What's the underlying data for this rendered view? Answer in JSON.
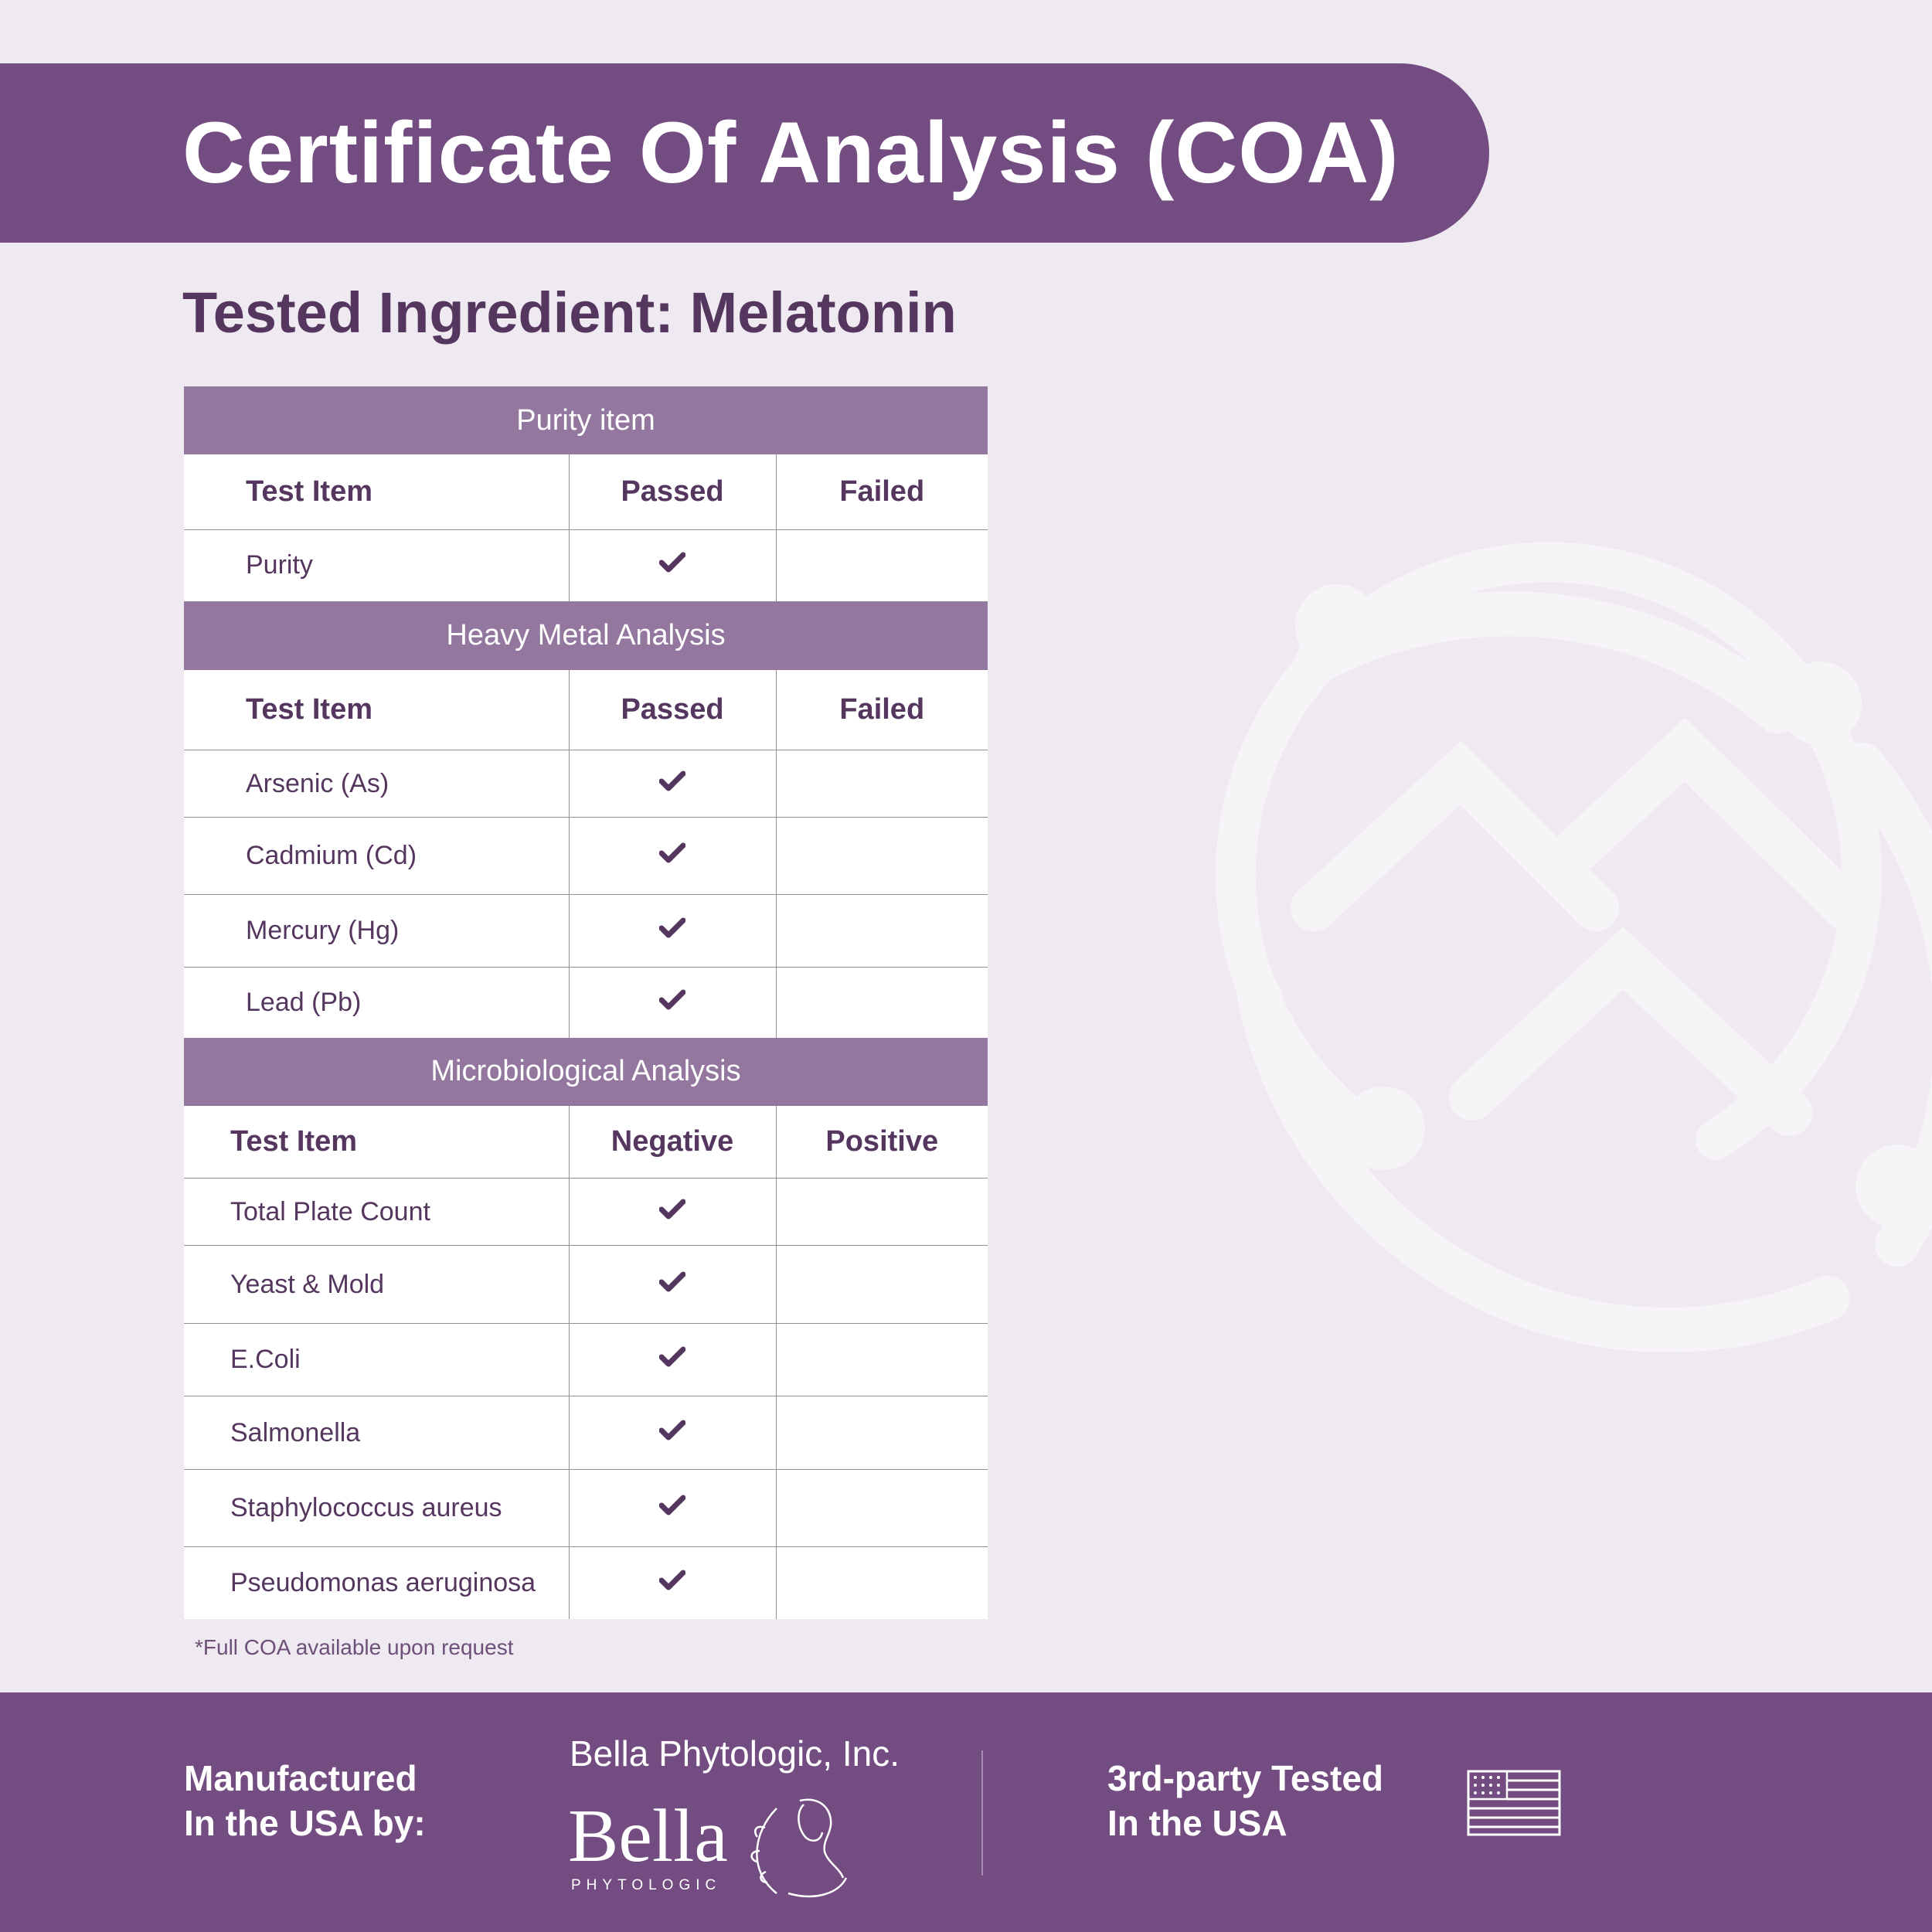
{
  "title": "Certificate Of Analysis (COA)",
  "subtitle": "Tested Ingredient: Melatonin",
  "colors": {
    "brand_purple": "#734c82",
    "section_purple": "#93779f",
    "text_purple": "#55365f",
    "background": "#efeaf1"
  },
  "purity": {
    "section_title": "Purity item",
    "headers": [
      "Test Item",
      "Passed",
      "Failed"
    ],
    "rows": [
      {
        "item": "Purity",
        "passed": true,
        "failed": false
      }
    ]
  },
  "heavy_metal": {
    "section_title": "Heavy Metal Analysis",
    "headers": [
      "Test Item",
      "Passed",
      "Failed"
    ],
    "rows": [
      {
        "item": "Arsenic (As)",
        "passed": true,
        "failed": false
      },
      {
        "item": "Cadmium (Cd)",
        "passed": true,
        "failed": false
      },
      {
        "item": "Mercury (Hg)",
        "passed": true,
        "failed": false
      },
      {
        "item": "Lead (Pb)",
        "passed": true,
        "failed": false
      }
    ]
  },
  "microbiological": {
    "section_title": "Microbiological Analysis",
    "headers": [
      "Test Item",
      "Negative",
      "Positive"
    ],
    "rows": [
      {
        "item": "Total Plate Count",
        "negative": true,
        "positive": false
      },
      {
        "item": "Yeast & Mold",
        "negative": true,
        "positive": false
      },
      {
        "item": "E.Coli",
        "negative": true,
        "positive": false
      },
      {
        "item": "Salmonella",
        "negative": true,
        "positive": false
      },
      {
        "item": "Staphylococcus aureus",
        "negative": true,
        "positive": false
      },
      {
        "item": "Pseudomonas aeruginosa",
        "negative": true,
        "positive": false
      }
    ]
  },
  "footnote": "*Full COA available upon request",
  "footer": {
    "manufactured_line1": "Manufactured",
    "manufactured_line2": "In the USA by:",
    "company_name": "Bella Phytologic, Inc.",
    "logo_word": "Bella",
    "logo_sub": "PHYTOLOGIC",
    "tested_line1": "3rd-party Tested",
    "tested_line2": "In the USA",
    "flag_icon": "us-flag-icon"
  }
}
